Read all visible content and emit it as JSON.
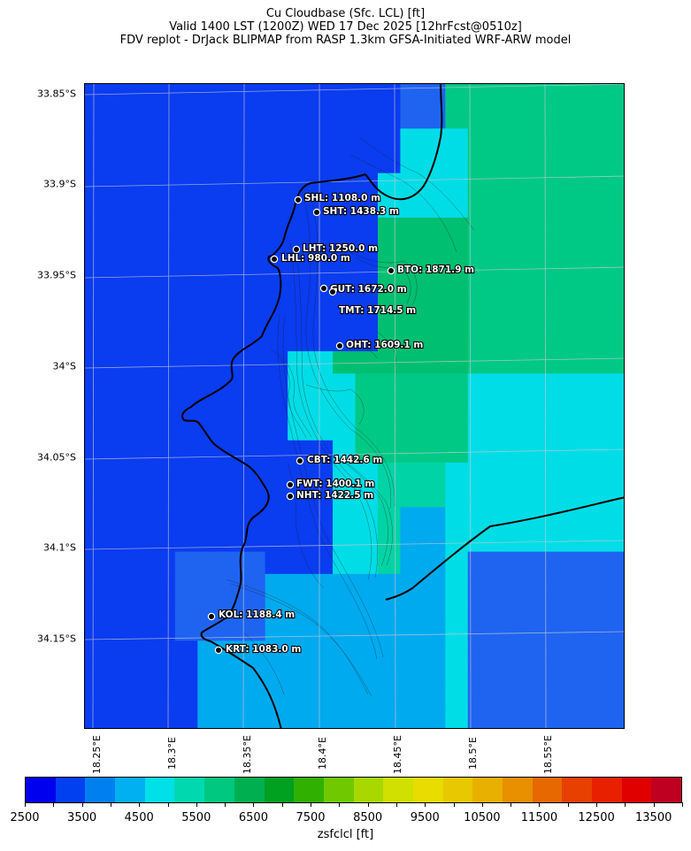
{
  "titles": {
    "line1": "Cu Cloudbase (Sfc. LCL) [ft]",
    "line2": "Valid 1400 LST (1200Z) WED 17 Dec 2025 [12hrFcst@0510z]",
    "line3": "FDV replot - DrJack BLIPMAP from RASP 1.3km GFSA-Initiated WRF-ARW model"
  },
  "axes": {
    "lat_labels": [
      "33.85°S",
      "33.9°S",
      "33.95°S",
      "34°S",
      "34.05°S",
      "34.1°S",
      "34.15°S"
    ],
    "lon_labels": [
      "18.25°E",
      "18.3°E",
      "18.35°E",
      "18.4°E",
      "18.45°E",
      "18.5°E",
      "18.55°E"
    ]
  },
  "colorbar": {
    "label": "zsfclcl [ft]",
    "tick_labels": [
      "2500",
      "3500",
      "4500",
      "5500",
      "6500",
      "7500",
      "8500",
      "9500",
      "10500",
      "11500",
      "12500",
      "13500"
    ],
    "min": 2500,
    "max": 14000,
    "step": 500,
    "colors": [
      "#0000ee",
      "#0040f0",
      "#0080f0",
      "#00b0f0",
      "#00e0e8",
      "#00d8b0",
      "#00c880",
      "#00b050",
      "#00a020",
      "#30b000",
      "#70c800",
      "#a8d800",
      "#d0e000",
      "#e8dc00",
      "#e8c800",
      "#e8b000",
      "#e89000",
      "#e86800",
      "#e84000",
      "#e82000",
      "#e00000",
      "#c00020"
    ]
  },
  "stations": [
    {
      "code": "SHL",
      "label": "SHL: 1108.0 m"
    },
    {
      "code": "SHT",
      "label": "SHT: 1438.3 m"
    },
    {
      "code": "LHT",
      "label": "LHT: 1250.0 m"
    },
    {
      "code": "LHL",
      "label": "LHL: 980.0 m"
    },
    {
      "code": "BTO",
      "label": "BTO: 1871.9 m"
    },
    {
      "code": "GUT",
      "label": "GUT: 1672.0 m"
    },
    {
      "code": "TMT",
      "label": "TMT: 1714.5 m"
    },
    {
      "code": "OHT",
      "label": "OHT: 1609.1 m"
    },
    {
      "code": "CBT",
      "label": "CBT: 1442.6 m"
    },
    {
      "code": "FWT",
      "label": "FWT: 1400.1 m"
    },
    {
      "code": "NHT",
      "label": "NHT: 1422.5 m"
    },
    {
      "code": "KOL",
      "label": "KOL: 1188.4 m"
    },
    {
      "code": "KRT",
      "label": "KRT: 1083.0 m"
    }
  ]
}
